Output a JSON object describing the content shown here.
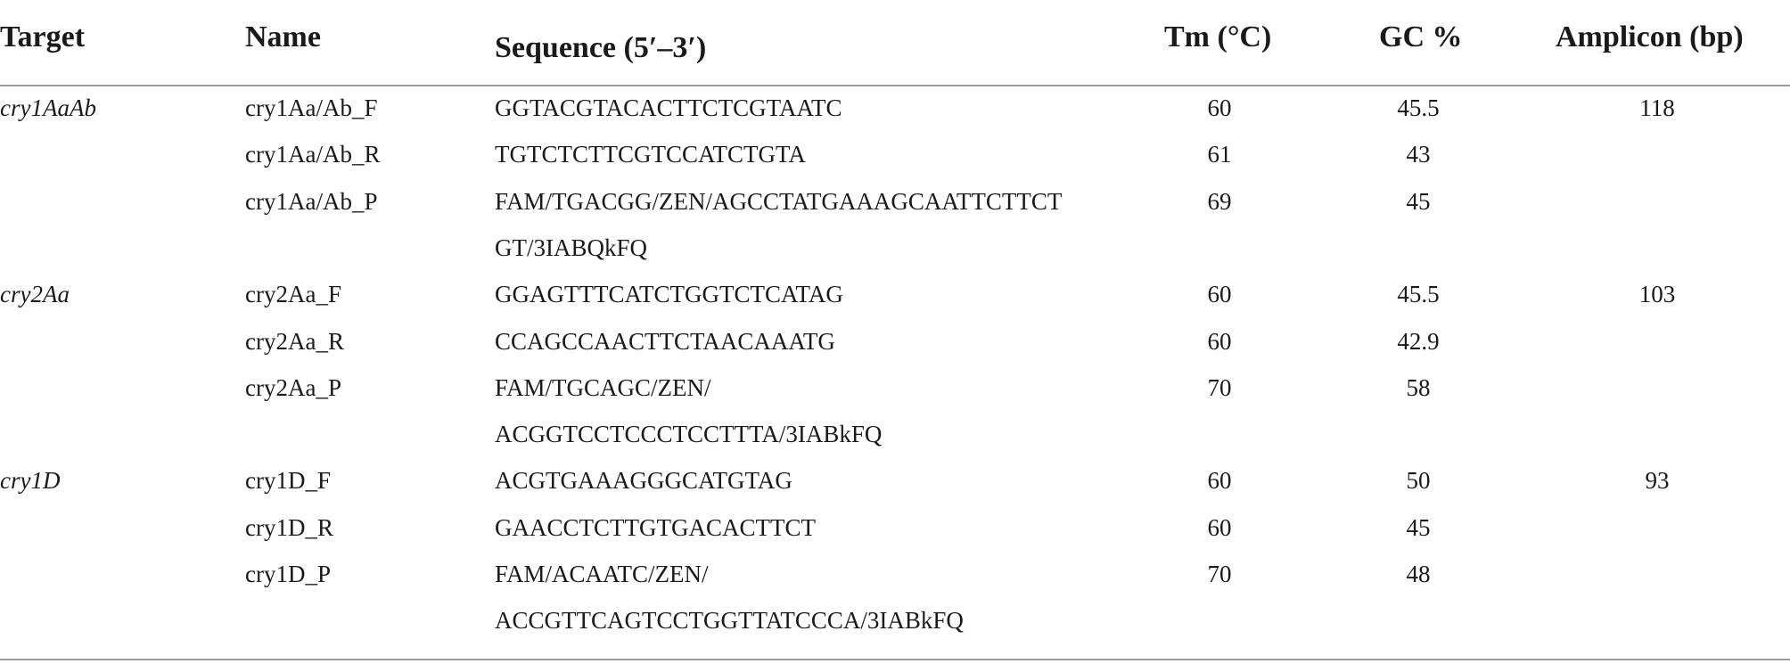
{
  "headers": {
    "target": "Target",
    "name": "Name",
    "sequence": "Sequence (5′–3′)",
    "tm": "Tm (°C)",
    "gc": "GC %",
    "amplicon": "Amplicon (bp)"
  },
  "rows": [
    {
      "target": "cry1AaAb",
      "name": "cry1Aa/Ab_F",
      "sequence": "GGTACGTACACTTCTCGTAATC",
      "tm": "60",
      "gc": "45.5",
      "amplicon": "118"
    },
    {
      "target": "",
      "name": "cry1Aa/Ab_R",
      "sequence": "TGTCTCTTCGTCCATCTGTA",
      "tm": "61",
      "gc": "43",
      "amplicon": ""
    },
    {
      "target": "",
      "name": "cry1Aa/Ab_P",
      "sequence": "FAM/TGACGG/ZEN/AGCCTATGAAAGCAATTCTTCT",
      "tm": "69",
      "gc": "45",
      "amplicon": ""
    },
    {
      "target": "",
      "name": "",
      "sequence": "GT/3IABQkFQ",
      "tm": "",
      "gc": "",
      "amplicon": ""
    },
    {
      "target": "cry2Aa",
      "name": "cry2Aa_F",
      "sequence": "GGAGTTTCATCTGGTCTCATAG",
      "tm": "60",
      "gc": "45.5",
      "amplicon": "103"
    },
    {
      "target": "",
      "name": "cry2Aa_R",
      "sequence": "CCAGCCAACTTCTAACAAATG",
      "tm": "60",
      "gc": "42.9",
      "amplicon": ""
    },
    {
      "target": "",
      "name": "cry2Aa_P",
      "sequence": "FAM/TGCAGC/ZEN/",
      "tm": "70",
      "gc": "58",
      "amplicon": ""
    },
    {
      "target": "",
      "name": "",
      "sequence": "ACGGTCCTCCCTCCTTTA/3IABkFQ",
      "tm": "",
      "gc": "",
      "amplicon": ""
    },
    {
      "target": "cry1D",
      "name": "cry1D_F",
      "sequence": "ACGTGAAAGGGCATGTAG",
      "tm": "60",
      "gc": "50",
      "amplicon": "93"
    },
    {
      "target": "",
      "name": "cry1D_R",
      "sequence": "GAACCTCTTGTGACACTTCT",
      "tm": "60",
      "gc": "45",
      "amplicon": ""
    },
    {
      "target": "",
      "name": "cry1D_P",
      "sequence": "FAM/ACAATC/ZEN/",
      "tm": "70",
      "gc": "48",
      "amplicon": ""
    },
    {
      "target": "",
      "name": "",
      "sequence": "ACCGTTCAGTCCTGGTTATCCCA/3IABkFQ",
      "tm": "",
      "gc": "",
      "amplicon": ""
    }
  ]
}
